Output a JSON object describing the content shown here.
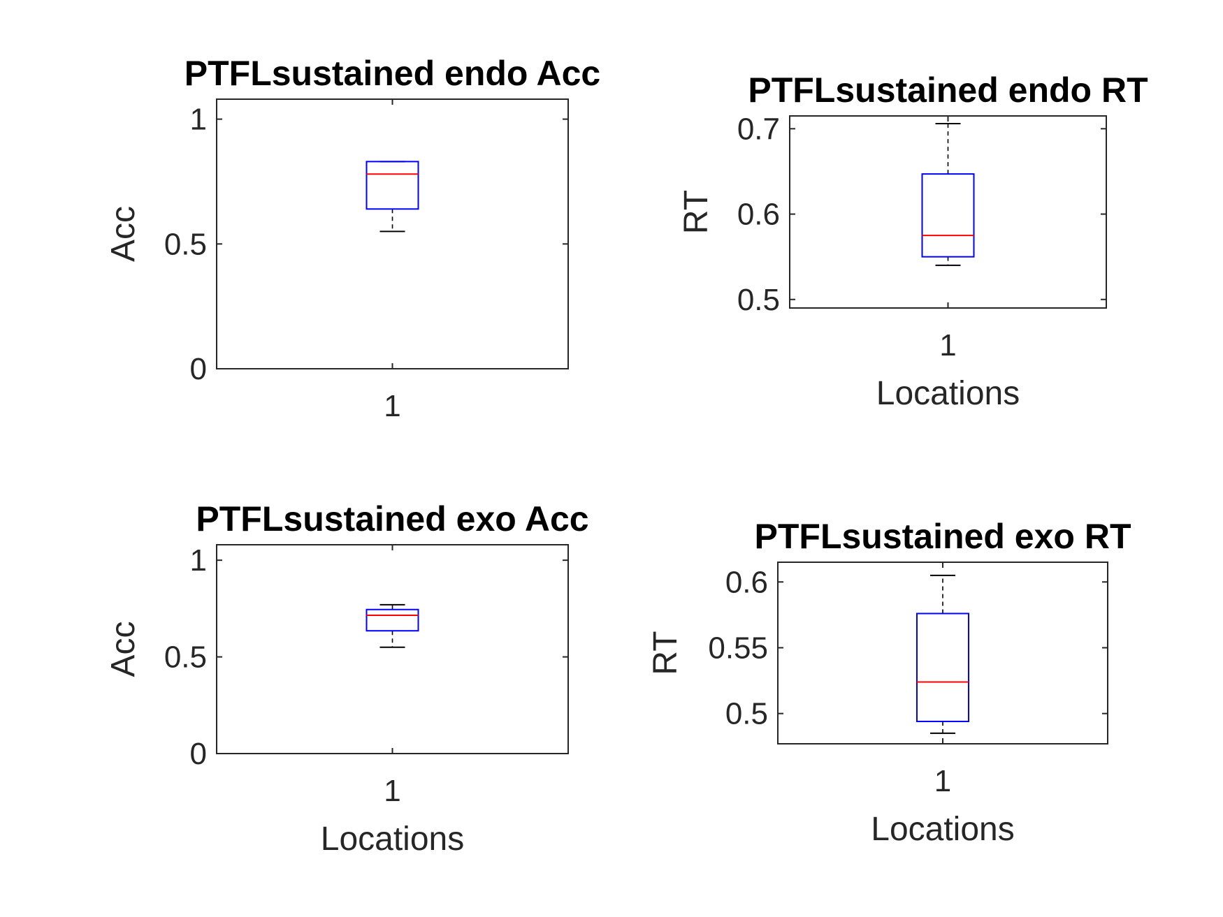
{
  "chart_data": [
    {
      "type": "boxplot",
      "title": "PTFLsustained endo Acc",
      "xlabel": "",
      "ylabel": "Acc",
      "categories": [
        "1"
      ],
      "yticks": [
        "0",
        "0.5",
        "1"
      ],
      "ylim": [
        0,
        1.08
      ],
      "boxes": [
        {
          "category": "1",
          "lower_whisker": 0.55,
          "q1": 0.64,
          "median": 0.78,
          "q3": 0.83,
          "upper_whisker": 0.83
        }
      ],
      "colors": {
        "box": "#0000ff",
        "median": "#ff0000",
        "whisker": "#000000"
      }
    },
    {
      "type": "boxplot",
      "title": "PTFLsustained endo RT",
      "xlabel": "Locations",
      "ylabel": "RT",
      "categories": [
        "1"
      ],
      "yticks": [
        "0.5",
        "0.6",
        "0.7"
      ],
      "ylim": [
        0.49,
        0.715
      ],
      "boxes": [
        {
          "category": "1",
          "lower_whisker": 0.54,
          "q1": 0.55,
          "median": 0.575,
          "q3": 0.647,
          "upper_whisker": 0.706
        }
      ],
      "colors": {
        "box": "#0000ff",
        "median": "#ff0000",
        "whisker": "#000000"
      }
    },
    {
      "type": "boxplot",
      "title": "PTFLsustained exo Acc",
      "xlabel": "Locations",
      "ylabel": "Acc",
      "categories": [
        "1"
      ],
      "yticks": [
        "0",
        "0.5",
        "1"
      ],
      "ylim": [
        0,
        1.08
      ],
      "boxes": [
        {
          "category": "1",
          "lower_whisker": 0.55,
          "q1": 0.635,
          "median": 0.715,
          "q3": 0.745,
          "upper_whisker": 0.77
        }
      ],
      "colors": {
        "box": "#0000ff",
        "median": "#ff0000",
        "whisker": "#000000"
      }
    },
    {
      "type": "boxplot",
      "title": "PTFLsustained exo RT",
      "xlabel": "Locations",
      "ylabel": "RT",
      "categories": [
        "1"
      ],
      "yticks": [
        "0.5",
        "0.55",
        "0.6"
      ],
      "ylim": [
        0.477,
        0.615
      ],
      "boxes": [
        {
          "category": "1",
          "lower_whisker": 0.485,
          "q1": 0.494,
          "median": 0.524,
          "q3": 0.576,
          "upper_whisker": 0.605
        }
      ],
      "colors": {
        "box": "#0000ff",
        "median": "#ff0000",
        "whisker": "#000000"
      }
    }
  ]
}
